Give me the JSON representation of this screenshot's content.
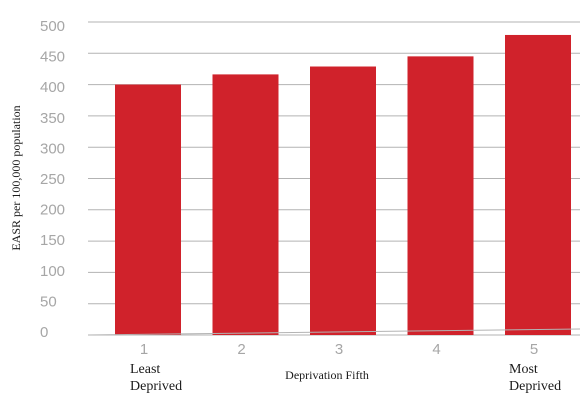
{
  "chart_data": {
    "type": "bar",
    "categories": [
      "1",
      "2",
      "3",
      "4",
      "5"
    ],
    "values": [
      389,
      407,
      421,
      439,
      477
    ],
    "bar_color": "#d0222b",
    "xlabel": "Deprivation Fifth",
    "ylabel": "EASR per 100,000 population",
    "ylim": [
      0,
      500
    ],
    "yticks": [
      "500",
      "450",
      "400",
      "350",
      "300",
      "250",
      "200",
      "150",
      "100",
      "50",
      "0"
    ],
    "category_notes": {
      "first": "Least\nDeprived",
      "last": "Most\nDeprived"
    },
    "grid": true
  }
}
